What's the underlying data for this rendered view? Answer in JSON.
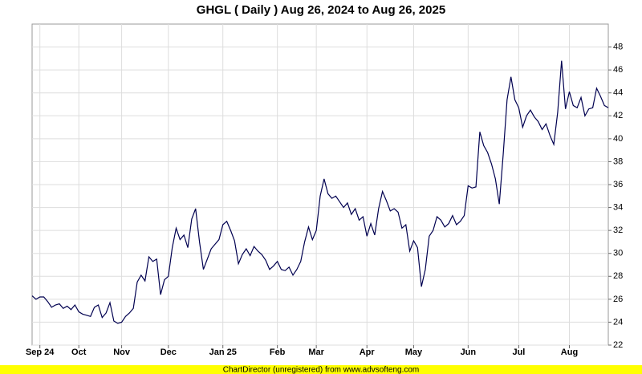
{
  "chart_data": {
    "type": "line",
    "title": "GHGL ( Daily ) Aug 26, 2024 to Aug 26, 2025",
    "footer": "ChartDirector (unregistered) from www.advsofteng.com",
    "color": "#000050",
    "grid": true,
    "ylim": [
      22,
      50
    ],
    "yticks": [
      22,
      24,
      26,
      28,
      30,
      32,
      34,
      36,
      38,
      40,
      42,
      44,
      46,
      48
    ],
    "categories": [
      null,
      null,
      "Sep 24",
      null,
      null,
      null,
      null,
      null,
      null,
      null,
      null,
      null,
      "Oct",
      null,
      null,
      null,
      null,
      null,
      null,
      null,
      null,
      null,
      null,
      "Nov",
      null,
      null,
      null,
      null,
      null,
      null,
      null,
      null,
      null,
      null,
      null,
      "Dec",
      null,
      null,
      null,
      null,
      null,
      null,
      null,
      null,
      null,
      null,
      null,
      null,
      null,
      "Jan 25",
      null,
      null,
      null,
      null,
      null,
      null,
      null,
      null,
      null,
      null,
      null,
      null,
      null,
      "Feb",
      null,
      null,
      null,
      null,
      null,
      null,
      null,
      null,
      null,
      "Mar",
      null,
      null,
      null,
      null,
      null,
      null,
      null,
      null,
      null,
      null,
      null,
      null,
      "Apr",
      null,
      null,
      null,
      null,
      null,
      null,
      null,
      null,
      null,
      null,
      null,
      "May",
      null,
      null,
      null,
      null,
      null,
      null,
      null,
      null,
      null,
      null,
      null,
      null,
      null,
      "Jun",
      null,
      null,
      null,
      null,
      null,
      null,
      null,
      null,
      null,
      null,
      null,
      null,
      "Jul",
      null,
      null,
      null,
      null,
      null,
      null,
      null,
      null,
      null,
      null,
      null,
      null,
      "Aug",
      null,
      null,
      null,
      null,
      null,
      null,
      null,
      null,
      null,
      null
    ],
    "values": [
      26.3,
      26.0,
      26.2,
      26.2,
      25.8,
      25.3,
      25.5,
      25.6,
      25.2,
      25.4,
      25.1,
      25.5,
      24.9,
      24.7,
      24.6,
      24.5,
      25.3,
      25.5,
      24.4,
      24.8,
      25.7,
      24.1,
      23.9,
      24.0,
      24.5,
      24.8,
      25.2,
      27.5,
      28.1,
      27.6,
      29.7,
      29.3,
      29.5,
      26.4,
      27.7,
      28.0,
      30.5,
      32.2,
      31.2,
      31.6,
      30.5,
      33.0,
      33.9,
      31.0,
      28.6,
      29.5,
      30.4,
      30.8,
      31.2,
      32.5,
      32.8,
      32.0,
      31.1,
      29.1,
      29.9,
      30.4,
      29.8,
      30.6,
      30.2,
      29.9,
      29.4,
      28.6,
      28.9,
      29.3,
      28.6,
      28.5,
      28.8,
      28.1,
      28.6,
      29.3,
      31.0,
      32.3,
      31.2,
      32.0,
      35.0,
      36.5,
      35.2,
      34.8,
      35.0,
      34.5,
      34.0,
      34.4,
      33.4,
      33.9,
      32.9,
      33.2,
      31.5,
      32.6,
      31.6,
      33.9,
      35.4,
      34.6,
      33.7,
      33.9,
      33.6,
      32.2,
      32.5,
      30.2,
      31.1,
      30.5,
      27.1,
      28.6,
      31.5,
      32.0,
      33.2,
      32.9,
      32.3,
      32.6,
      33.3,
      32.5,
      32.8,
      33.3,
      35.9,
      35.7,
      35.8,
      40.6,
      39.4,
      38.8,
      37.8,
      36.5,
      34.3,
      38.6,
      43.4,
      45.4,
      43.4,
      42.7,
      41.0,
      42.0,
      42.5,
      41.9,
      41.5,
      40.8,
      41.3,
      40.3,
      39.5,
      42.3,
      46.8,
      42.6,
      44.1,
      42.9,
      42.7,
      43.6,
      42.0,
      42.6,
      42.7,
      44.4,
      43.7,
      42.9,
      42.7
    ]
  }
}
